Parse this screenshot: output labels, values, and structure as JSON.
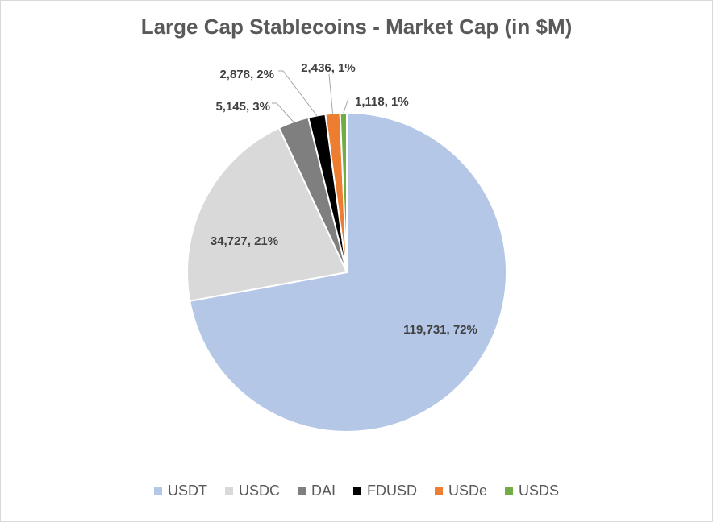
{
  "chart_data": {
    "type": "pie",
    "title": "Large Cap Stablecoins - Market Cap (in $M)",
    "legend_position": "bottom",
    "slices": [
      {
        "name": "USDT",
        "value": 119731,
        "label": "119,731, 72%",
        "color": "#b4c7e7"
      },
      {
        "name": "USDC",
        "value": 34727,
        "label": "34,727, 21%",
        "color": "#d9d9d9"
      },
      {
        "name": "DAI",
        "value": 5145,
        "label": "5,145, 3%",
        "color": "#7f7f7f"
      },
      {
        "name": "FDUSD",
        "value": 2878,
        "label": "2,878, 2%",
        "color": "#000000"
      },
      {
        "name": "USDe",
        "value": 2436,
        "label": "2,436, 1%",
        "color": "#ed7d31"
      },
      {
        "name": "USDS",
        "value": 1118,
        "label": "1,118, 1%",
        "color": "#70ad47"
      }
    ]
  }
}
